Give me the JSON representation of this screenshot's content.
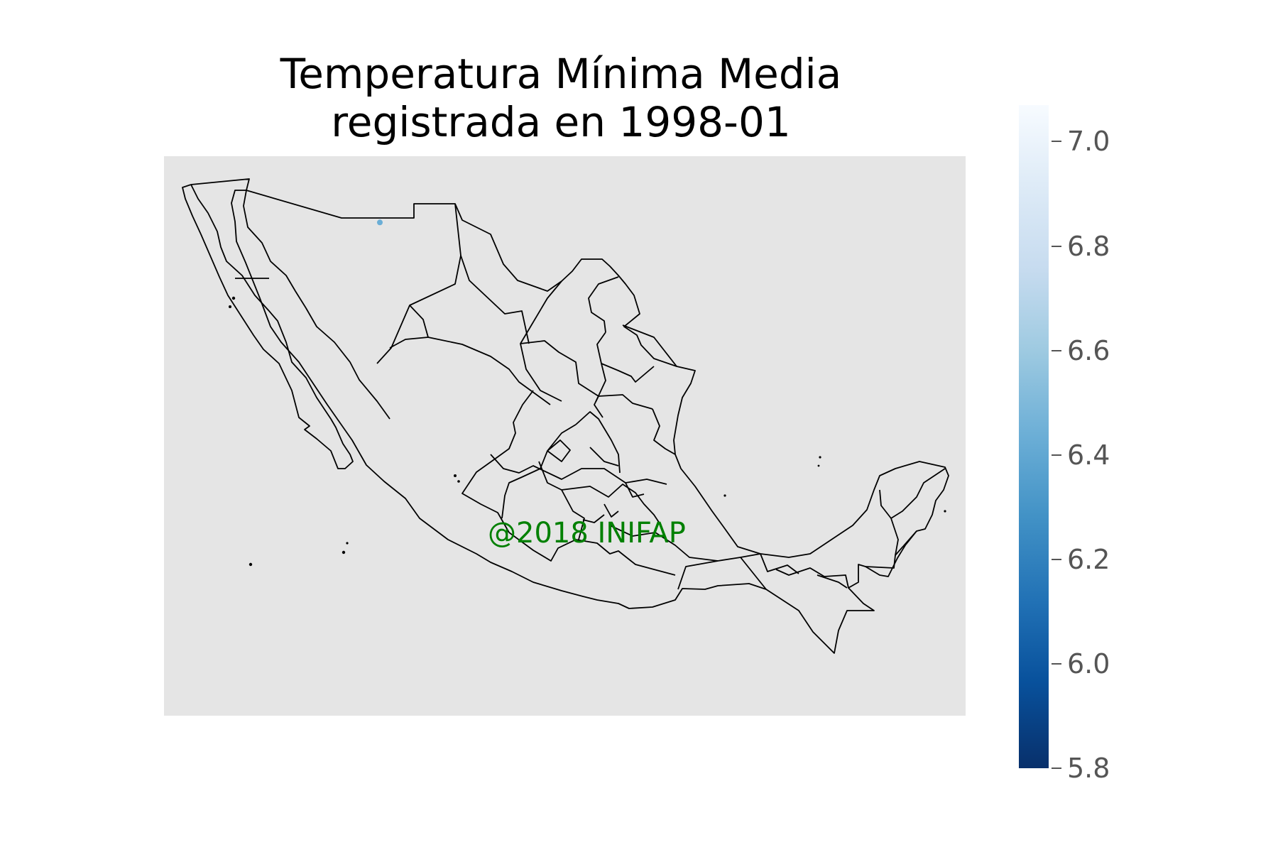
{
  "title": [
    "Temperatura Mínima Media",
    "registrada en 1998-01"
  ],
  "watermark": "@2018 INIFAP",
  "colors": {
    "map_background": "#e5e5e5",
    "borders": "#000000",
    "watermark": "#008000",
    "colormap": "Blues"
  },
  "colorbar": {
    "min": 5.8,
    "max": 7.07,
    "ticks": [
      "7.0",
      "6.8",
      "6.6",
      "6.4",
      "6.2",
      "6.0",
      "5.8"
    ]
  },
  "stations": [
    {
      "lon": -109.95,
      "lat": 31.05,
      "value": 6.45
    }
  ]
}
